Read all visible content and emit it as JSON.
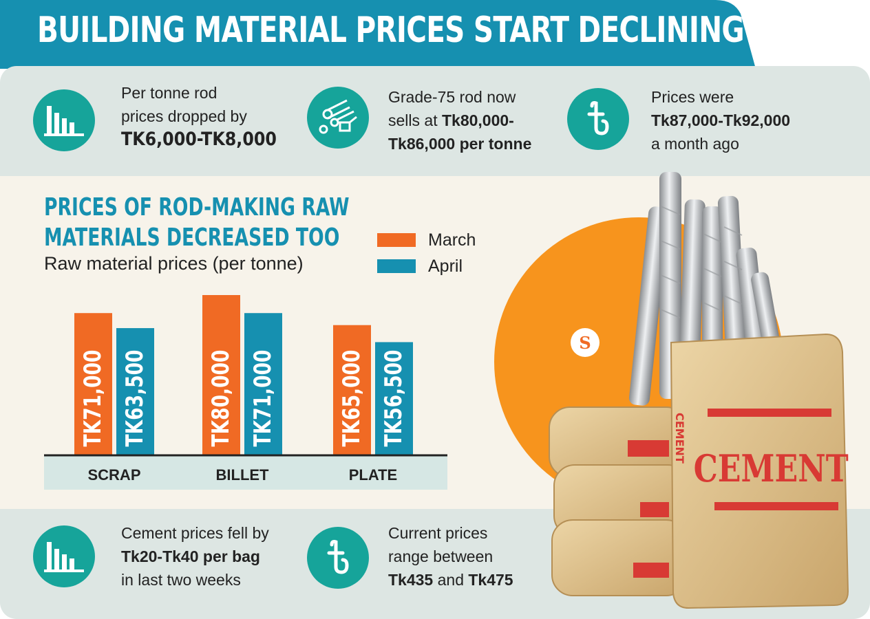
{
  "title": "BUILDING MATERIAL PRICES START DECLINING",
  "colors": {
    "title_bar": "#1690b0",
    "teal_icon": "#16a49a",
    "band_light": "#dde6e3",
    "band_cream": "#f7f3ea",
    "march": "#f06a24",
    "april": "#1690b0",
    "orange_circle": "#f7941d"
  },
  "top_facts": [
    {
      "icon": "bar-chart-icon",
      "line1": "Per tonne rod",
      "line2": "prices dropped by",
      "line3": "TK6,000-TK8,000"
    },
    {
      "icon": "steel-rod-icon",
      "line1": "Grade-75 rod now",
      "line2_plain": "sells at ",
      "line2_bold": "Tk80,000-",
      "line3": "Tk86,000 per tonne"
    },
    {
      "icon": "taka-icon",
      "line1": "Prices were",
      "line2": "Tk87,000-Tk92,000",
      "line3": "a month ago"
    }
  ],
  "bottom_facts": [
    {
      "icon": "bar-chart-icon",
      "line1": "Cement prices fell by",
      "line2": "Tk20-Tk40 per bag",
      "line3": "in last two weeks"
    },
    {
      "icon": "taka-icon",
      "line1": "Current prices",
      "line2": "range between",
      "line3_bold_a": "Tk435",
      "line3_plain": " and ",
      "line3_bold_b": "Tk475"
    }
  ],
  "illustration": {
    "logo_text": "S",
    "cement_label": "CEMENT"
  },
  "chart_data": {
    "type": "bar",
    "title": "PRICES OF ROD-MAKING RAW MATERIALS DECREASED TOO",
    "title_line1": "PRICES OF ROD-MAKING RAW",
    "title_line2": "MATERIALS DECREASED TOO",
    "subtitle": "Raw material prices (per tonne)",
    "categories": [
      "SCRAP",
      "BILLET",
      "PLATE"
    ],
    "series": [
      {
        "name": "March",
        "values": [
          71000,
          80000,
          65000
        ],
        "labels": [
          "TK71,000",
          "TK80,000",
          "TK65,000"
        ]
      },
      {
        "name": "April",
        "values": [
          63500,
          71000,
          56500
        ],
        "labels": [
          "TK63,500",
          "TK71,000",
          "TK56,500"
        ]
      }
    ],
    "ylim": [
      0,
      80000
    ],
    "legend_position": "top-right",
    "grid": false
  }
}
